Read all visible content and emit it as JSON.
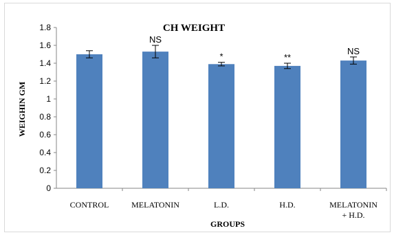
{
  "chart_data": {
    "type": "bar",
    "title": "CH WEIGHT",
    "xlabel": "GROUPS",
    "ylabel": "WEIGHIN GM",
    "ylim": [
      0,
      1.8
    ],
    "yticks": [
      "0",
      "0.2",
      "0.4",
      "0.6",
      "0.8",
      "1",
      "1.2",
      "1.4",
      "1.6",
      "1.8"
    ],
    "categories": [
      [
        "CONTROL"
      ],
      [
        "MELATONIN"
      ],
      [
        "L.D."
      ],
      [
        "H.D."
      ],
      [
        "MELATONIN",
        "+ H.D."
      ]
    ],
    "values": [
      1.5,
      1.53,
      1.39,
      1.37,
      1.43
    ],
    "errors": [
      0.04,
      0.07,
      0.02,
      0.03,
      0.04
    ],
    "significance": [
      "",
      "NS",
      "*",
      "**",
      "NS"
    ],
    "grid": false,
    "bar_color": "#4f81bd"
  }
}
